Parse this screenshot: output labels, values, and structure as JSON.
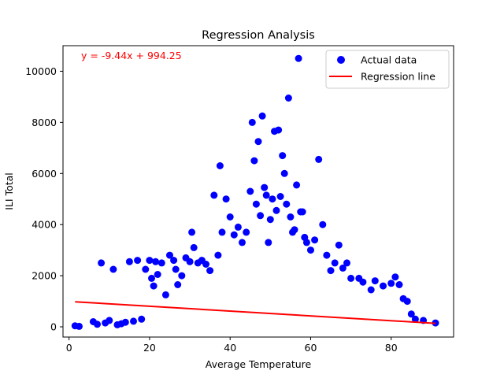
{
  "chart_data": {
    "type": "scatter",
    "title": "Regression Analysis",
    "xlabel": "Average Temperature",
    "ylabel": "ILI Total",
    "xlim": [
      -1.5,
      95.5
    ],
    "ylim": [
      -400,
      11000
    ],
    "x_ticks": [
      0,
      20,
      40,
      60,
      80
    ],
    "y_ticks": [
      0,
      2000,
      4000,
      6000,
      8000,
      10000
    ],
    "x_tick_labels": [
      "0",
      "20",
      "40",
      "60",
      "80"
    ],
    "y_tick_labels": [
      "0",
      "2000",
      "4000",
      "6000",
      "8000",
      "10000"
    ],
    "grid": false,
    "legend_position": "top-right",
    "equation_text": "y = -9.44x + 994.25",
    "colors": {
      "points": "#0000ff",
      "line": "#ff0000",
      "equation": "#ff0000"
    },
    "series": [
      {
        "name": "Actual data",
        "type": "scatter",
        "points": [
          [
            1.5,
            40
          ],
          [
            2.5,
            20
          ],
          [
            6,
            200
          ],
          [
            7,
            100
          ],
          [
            8,
            2500
          ],
          [
            9,
            150
          ],
          [
            10,
            250
          ],
          [
            11,
            2250
          ],
          [
            12,
            80
          ],
          [
            13,
            120
          ],
          [
            14,
            180
          ],
          [
            15,
            2550
          ],
          [
            16,
            220
          ],
          [
            17,
            2600
          ],
          [
            18,
            300
          ],
          [
            19,
            2250
          ],
          [
            20,
            2600
          ],
          [
            20.5,
            1900
          ],
          [
            21,
            1600
          ],
          [
            21.5,
            2550
          ],
          [
            22,
            2050
          ],
          [
            23,
            2500
          ],
          [
            24,
            1250
          ],
          [
            25,
            2800
          ],
          [
            26,
            2600
          ],
          [
            26.5,
            2250
          ],
          [
            27,
            1650
          ],
          [
            28,
            2000
          ],
          [
            29,
            2700
          ],
          [
            30,
            2550
          ],
          [
            30.5,
            3700
          ],
          [
            31,
            3100
          ],
          [
            32,
            2500
          ],
          [
            33,
            2600
          ],
          [
            34,
            2450
          ],
          [
            35,
            2200
          ],
          [
            36,
            5150
          ],
          [
            37,
            2800
          ],
          [
            37.5,
            6300
          ],
          [
            38,
            3700
          ],
          [
            39,
            5000
          ],
          [
            40,
            4300
          ],
          [
            41,
            3600
          ],
          [
            42,
            3900
          ],
          [
            43,
            3300
          ],
          [
            44,
            3700
          ],
          [
            45,
            5300
          ],
          [
            45.5,
            8000
          ],
          [
            46,
            6500
          ],
          [
            46.5,
            4800
          ],
          [
            47,
            7250
          ],
          [
            47.5,
            4350
          ],
          [
            48,
            8250
          ],
          [
            48.5,
            5450
          ],
          [
            49,
            5150
          ],
          [
            49.5,
            3300
          ],
          [
            50,
            4200
          ],
          [
            50.5,
            5000
          ],
          [
            51,
            7650
          ],
          [
            51.5,
            4550
          ],
          [
            52,
            7700
          ],
          [
            52.5,
            5100
          ],
          [
            53,
            6700
          ],
          [
            53.5,
            6000
          ],
          [
            54,
            4800
          ],
          [
            54.5,
            8950
          ],
          [
            55,
            4300
          ],
          [
            55.5,
            3700
          ],
          [
            56,
            3800
          ],
          [
            56.5,
            5550
          ],
          [
            57,
            10500
          ],
          [
            57.5,
            4500
          ],
          [
            58,
            4500
          ],
          [
            58.5,
            3500
          ],
          [
            59,
            3300
          ],
          [
            60,
            3000
          ],
          [
            61,
            3400
          ],
          [
            62,
            6550
          ],
          [
            63,
            4000
          ],
          [
            64,
            2800
          ],
          [
            65,
            2200
          ],
          [
            66,
            2500
          ],
          [
            67,
            3200
          ],
          [
            68,
            2300
          ],
          [
            69,
            2500
          ],
          [
            70,
            1900
          ],
          [
            72,
            1900
          ],
          [
            73,
            1750
          ],
          [
            75,
            1450
          ],
          [
            76,
            1800
          ],
          [
            78,
            1600
          ],
          [
            80,
            1700
          ],
          [
            81,
            1950
          ],
          [
            82,
            1650
          ],
          [
            83,
            1100
          ],
          [
            84,
            1000
          ],
          [
            85,
            500
          ],
          [
            86,
            300
          ],
          [
            88,
            250
          ],
          [
            91,
            150
          ]
        ]
      },
      {
        "name": "Regression line",
        "type": "line",
        "slope": -9.44,
        "intercept": 994.25,
        "x_range": [
          1.5,
          91
        ]
      }
    ]
  }
}
